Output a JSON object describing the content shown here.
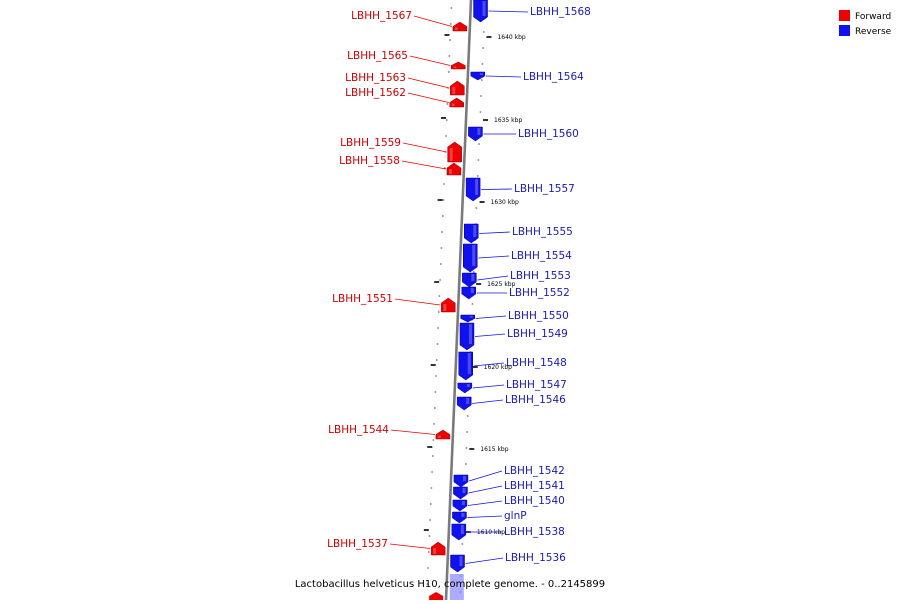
{
  "caption": "Lactobacillus helveticus H10, complete genome. - 0..2145899",
  "legend": {
    "forward": {
      "label": "Forward",
      "color": "#ee0000"
    },
    "reverse": {
      "label": "Reverse",
      "color": "#1111ee"
    }
  },
  "scale_labels": [
    "1640 kbp",
    "1635 kbp",
    "1630 kbp",
    "1625 kbp",
    "1620 kbp",
    "1615 kbp",
    "1610 kbp"
  ],
  "genes": [
    {
      "name": "LBHH_1568",
      "strand": "reverse"
    },
    {
      "name": "LBHH_1567",
      "strand": "forward"
    },
    {
      "name": "LBHH_1565",
      "strand": "forward"
    },
    {
      "name": "LBHH_1564",
      "strand": "reverse"
    },
    {
      "name": "LBHH_1563",
      "strand": "forward"
    },
    {
      "name": "LBHH_1562",
      "strand": "forward"
    },
    {
      "name": "LBHH_1560",
      "strand": "reverse"
    },
    {
      "name": "LBHH_1559",
      "strand": "forward"
    },
    {
      "name": "LBHH_1558",
      "strand": "forward"
    },
    {
      "name": "LBHH_1557",
      "strand": "reverse"
    },
    {
      "name": "LBHH_1555",
      "strand": "reverse"
    },
    {
      "name": "LBHH_1554",
      "strand": "reverse"
    },
    {
      "name": "LBHH_1553",
      "strand": "reverse"
    },
    {
      "name": "LBHH_1552",
      "strand": "reverse"
    },
    {
      "name": "LBHH_1551",
      "strand": "forward"
    },
    {
      "name": "LBHH_1550",
      "strand": "reverse"
    },
    {
      "name": "LBHH_1549",
      "strand": "reverse"
    },
    {
      "name": "LBHH_1548",
      "strand": "reverse"
    },
    {
      "name": "LBHH_1547",
      "strand": "reverse"
    },
    {
      "name": "LBHH_1546",
      "strand": "reverse"
    },
    {
      "name": "LBHH_1544",
      "strand": "forward"
    },
    {
      "name": "LBHH_1542",
      "strand": "reverse"
    },
    {
      "name": "LBHH_1541",
      "strand": "reverse"
    },
    {
      "name": "LBHH_1540",
      "strand": "reverse"
    },
    {
      "name": "glnP",
      "strand": "reverse"
    },
    {
      "name": "LBHH_1538",
      "strand": "reverse"
    },
    {
      "name": "LBHH_1537",
      "strand": "forward"
    },
    {
      "name": "LBHH_1536",
      "strand": "reverse"
    }
  ]
}
